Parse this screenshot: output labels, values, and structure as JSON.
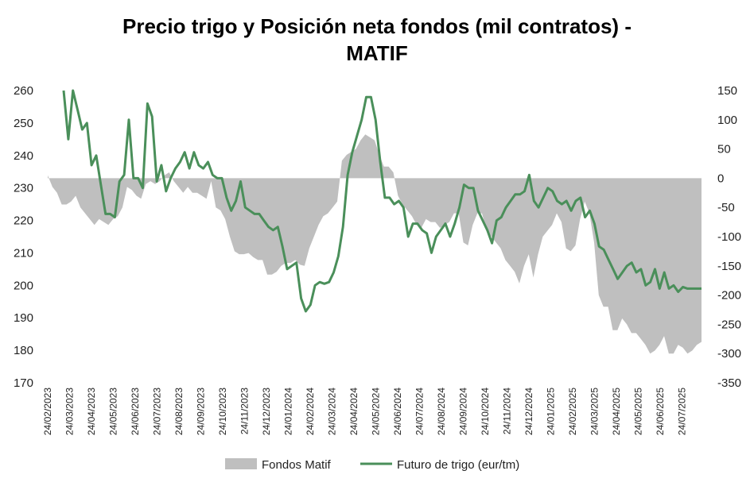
{
  "chart_data": {
    "type": "line",
    "title_line1": "Precio trigo y Posición neta fondos (mil contratos) -",
    "title_line2": "MATIF",
    "left_axis": {
      "ylim": [
        170,
        260
      ],
      "ticks": [
        "170",
        "180",
        "190",
        "200",
        "210",
        "220",
        "230",
        "240",
        "250",
        "260"
      ]
    },
    "right_axis": {
      "ylim": [
        -350,
        150
      ],
      "ticks": [
        "-350",
        "-300",
        "-250",
        "-200",
        "-150",
        "-100",
        "-50",
        "0",
        "50",
        "100",
        "150"
      ]
    },
    "x_tick_labels": [
      "24/02/2023",
      "24/03/2023",
      "24/04/2023",
      "24/05/2023",
      "24/06/2023",
      "24/07/2023",
      "24/08/2023",
      "24/09/2023",
      "24/10/2023",
      "24/11/2023",
      "24/12/2023",
      "24/01/2024",
      "24/02/2024",
      "24/03/2024",
      "24/04/2024",
      "24/05/2024",
      "24/06/2024",
      "24/07/2024",
      "24/08/2024",
      "24/09/2024",
      "24/10/2024",
      "24/11/2024",
      "24/12/2024",
      "24/01/2025",
      "24/02/2025",
      "24/03/2025",
      "24/04/2025",
      "24/05/2025",
      "24/06/2025",
      "24/07/2025"
    ],
    "legend_position": "bottom",
    "series": [
      {
        "name": "Fondos Matif",
        "kind": "area",
        "axis": "right",
        "color": "#bfbfbf",
        "values": [
          5,
          -15,
          -25,
          -45,
          -45,
          -40,
          -30,
          -50,
          -60,
          -70,
          -80,
          -70,
          -75,
          -80,
          -70,
          -65,
          -50,
          -15,
          -20,
          -30,
          -35,
          -10,
          -5,
          -10,
          -5,
          5,
          10,
          -5,
          -15,
          -25,
          -15,
          -25,
          -25,
          -30,
          -35,
          -5,
          -50,
          -55,
          -70,
          -100,
          -125,
          -130,
          -130,
          -128,
          -135,
          -140,
          -140,
          -165,
          -165,
          -160,
          -150,
          -145,
          -145,
          -140,
          -148,
          -150,
          -120,
          -100,
          -80,
          -65,
          -60,
          -50,
          -40,
          30,
          40,
          45,
          50,
          65,
          75,
          70,
          65,
          40,
          20,
          20,
          10,
          -30,
          -45,
          -55,
          -65,
          -80,
          -85,
          -70,
          -75,
          -75,
          -85,
          -80,
          -75,
          -60,
          -60,
          -110,
          -115,
          -80,
          -60,
          -60,
          -90,
          -100,
          -110,
          -120,
          -140,
          -150,
          -160,
          -180,
          -150,
          -130,
          -170,
          -130,
          -100,
          -90,
          -80,
          -60,
          -75,
          -120,
          -125,
          -115,
          -70,
          -40,
          -60,
          -110,
          -200,
          -220,
          -220,
          -260,
          -260,
          -240,
          -250,
          -265,
          -265,
          -275,
          -285,
          -300,
          -295,
          -285,
          -270,
          -300,
          -300,
          -285,
          -290,
          -300,
          -295,
          -285,
          -280
        ]
      },
      {
        "name": "Futuro de trigo (eur/tm)",
        "kind": "line",
        "axis": "left",
        "color": "#4a8f5a",
        "values": [
          260,
          245,
          260,
          254,
          248,
          250,
          237,
          240,
          231,
          222,
          222,
          221,
          232,
          234,
          251,
          233,
          233,
          230,
          256,
          252,
          232,
          237,
          229,
          233,
          236,
          238,
          241,
          236,
          241,
          237,
          236,
          238,
          234,
          233,
          233,
          227,
          223,
          226,
          232,
          224,
          223,
          222,
          222,
          220,
          218,
          217,
          218,
          212,
          205,
          206,
          207,
          196,
          192,
          194,
          200,
          201,
          200.5,
          201,
          204,
          209,
          218,
          234,
          241,
          246,
          251,
          258,
          258,
          251,
          238,
          227,
          227,
          225,
          226,
          224,
          215,
          219,
          219,
          217,
          216,
          210,
          215,
          217,
          219,
          215,
          219,
          224,
          231,
          230,
          230,
          223,
          220,
          217,
          213,
          220,
          221,
          224,
          226,
          228,
          228,
          229,
          234,
          226,
          224,
          227,
          230,
          229,
          226,
          225,
          226,
          223,
          226,
          227,
          221,
          223,
          219,
          212,
          211,
          208,
          205,
          202,
          204,
          206,
          207,
          204,
          205,
          200,
          201,
          205,
          199,
          204,
          199,
          200,
          198,
          199.5,
          199,
          199,
          199,
          199
        ]
      }
    ]
  }
}
